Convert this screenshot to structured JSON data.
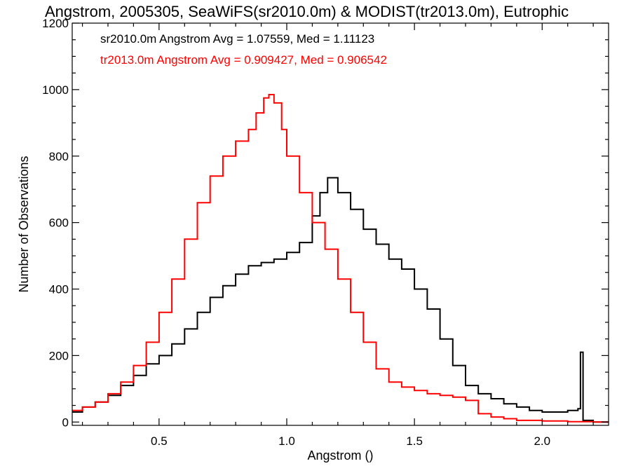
{
  "chart_data": {
    "type": "line",
    "title": "Angstrom, 2005305, SeaWiFS(sr2010.0m) & MODIST(tr2013.0m), Eutrophic",
    "xlabel": "Angstrom ()",
    "ylabel": "Number of Observations",
    "xlim": [
      0.16,
      2.26
    ],
    "ylim": [
      -10,
      1200
    ],
    "x_ticks": [
      0.5,
      1.0,
      1.5,
      2.0
    ],
    "x_tick_labels": [
      "0.5",
      "1.0",
      "1.5",
      "2.0"
    ],
    "y_ticks": [
      0,
      200,
      400,
      600,
      800,
      1000,
      1200
    ],
    "y_tick_labels": [
      "0",
      "200",
      "400",
      "600",
      "800",
      "1000",
      "1200"
    ],
    "grid": false,
    "step": true,
    "annotations": [
      {
        "text": "sr2010.0m Angstrom Avg = 1.07559, Med = 1.11123",
        "color": "#000000"
      },
      {
        "text": "tr2013.0m Angstrom Avg = 0.909427, Med = 0.906542",
        "color": "#ff0000"
      }
    ],
    "series": [
      {
        "color": "#000000",
        "x": [
          0.16,
          0.2,
          0.25,
          0.3,
          0.35,
          0.4,
          0.45,
          0.5,
          0.55,
          0.6,
          0.65,
          0.7,
          0.75,
          0.8,
          0.85,
          0.9,
          0.95,
          1.0,
          1.05,
          1.1,
          1.13,
          1.16,
          1.2,
          1.25,
          1.3,
          1.35,
          1.4,
          1.45,
          1.5,
          1.55,
          1.6,
          1.65,
          1.7,
          1.75,
          1.8,
          1.85,
          1.9,
          1.95,
          2.0,
          2.05,
          2.1,
          2.14,
          2.15,
          2.16,
          2.2,
          2.26
        ],
        "values": [
          30,
          45,
          60,
          80,
          110,
          140,
          175,
          200,
          235,
          280,
          330,
          375,
          410,
          445,
          470,
          480,
          490,
          510,
          540,
          620,
          690,
          735,
          690,
          640,
          580,
          535,
          490,
          460,
          400,
          340,
          250,
          170,
          110,
          85,
          70,
          55,
          45,
          35,
          30,
          30,
          35,
          40,
          210,
          5,
          0,
          0
        ]
      },
      {
        "color": "#ff0000",
        "x": [
          0.16,
          0.2,
          0.25,
          0.3,
          0.35,
          0.4,
          0.45,
          0.5,
          0.55,
          0.6,
          0.65,
          0.7,
          0.75,
          0.8,
          0.85,
          0.88,
          0.91,
          0.93,
          0.95,
          0.98,
          1.0,
          1.05,
          1.1,
          1.15,
          1.2,
          1.25,
          1.3,
          1.35,
          1.4,
          1.45,
          1.5,
          1.55,
          1.6,
          1.65,
          1.7,
          1.75,
          1.8,
          1.85,
          1.9,
          2.0,
          2.1,
          2.2,
          2.26
        ],
        "values": [
          35,
          45,
          60,
          85,
          120,
          170,
          240,
          330,
          430,
          550,
          660,
          740,
          800,
          845,
          880,
          930,
          975,
          985,
          960,
          880,
          800,
          690,
          600,
          520,
          430,
          330,
          240,
          160,
          120,
          105,
          95,
          85,
          80,
          75,
          65,
          25,
          15,
          10,
          5,
          3,
          1,
          0,
          0
        ]
      }
    ]
  }
}
